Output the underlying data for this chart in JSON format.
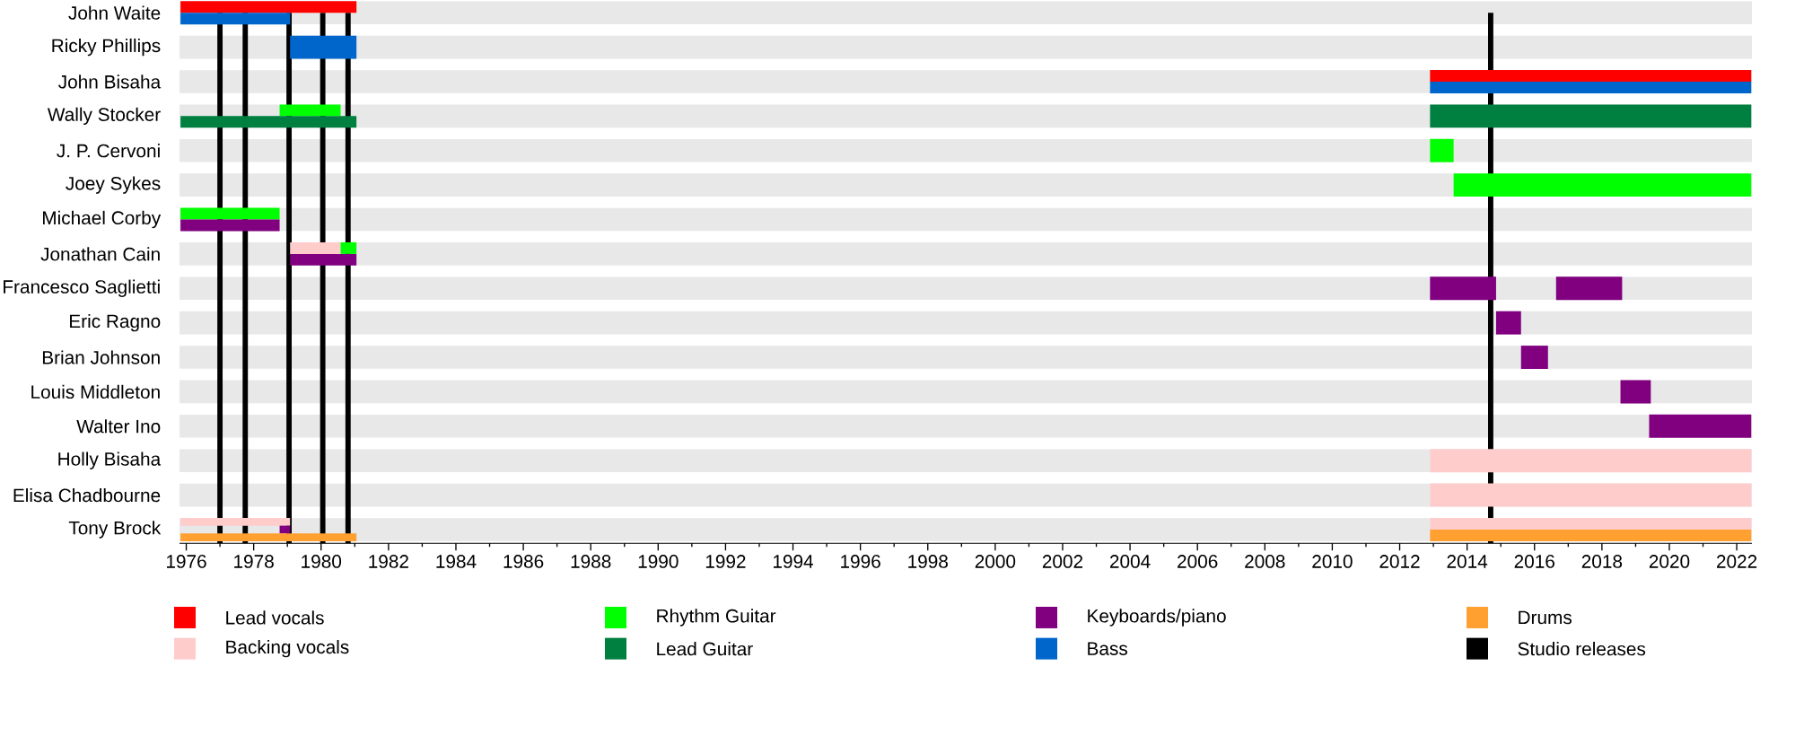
{
  "chart_data": {
    "type": "bar",
    "orientation": "horizontal",
    "categories": [
      "John Waite",
      "Ricky Phillips",
      "John Bisaha",
      "Wally Stocker",
      "J. P. Cervoni",
      "Joey Sykes",
      "Michael Corby",
      "Jonathan Cain",
      "Francesco Saglietti",
      "Eric Ragno",
      "Brian Johnson",
      "Louis Middleton",
      "Walter Ino",
      "Holly Bisaha",
      "Elisa Chadbourne",
      "Tony Brock"
    ],
    "series": [
      {
        "name": "Lead vocals",
        "color": "#ff0000",
        "base": [
          1975.83,
          null,
          2012.9,
          null,
          null,
          null,
          null,
          null,
          null,
          null,
          null,
          null,
          null,
          null,
          null,
          null
        ],
        "values": [
          5.22,
          null,
          9.53,
          null,
          null,
          null,
          null,
          null,
          null,
          null,
          null,
          null,
          null,
          null,
          null,
          null
        ]
      },
      {
        "name": "Backing vocals",
        "color": "#ffcccc",
        "base": [
          null,
          null,
          null,
          null,
          null,
          null,
          null,
          1979.08,
          null,
          null,
          null,
          null,
          null,
          2012.9,
          2012.9,
          1975.83
        ],
        "values": [
          null,
          null,
          null,
          null,
          null,
          null,
          null,
          1.5,
          null,
          null,
          null,
          null,
          null,
          9.53,
          9.53,
          3.25
        ]
      },
      {
        "name": "Rhythm Guitar",
        "color": "#00ff00",
        "base": [
          null,
          null,
          null,
          1978.77,
          2012.9,
          2013.6,
          1975.83,
          1980.58,
          null,
          null,
          null,
          null,
          null,
          null,
          null,
          null
        ],
        "values": [
          null,
          null,
          null,
          1.81,
          0.7,
          8.83,
          2.94,
          0.47,
          null,
          null,
          null,
          null,
          null,
          null,
          null,
          null
        ]
      },
      {
        "name": "Lead Guitar",
        "color": "#008040",
        "base": [
          null,
          null,
          null,
          1975.83,
          null,
          null,
          null,
          null,
          null,
          null,
          null,
          null,
          null,
          null,
          null,
          null
        ],
        "values": [
          null,
          null,
          null,
          5.22,
          null,
          null,
          null,
          null,
          null,
          null,
          null,
          null,
          null,
          null,
          null,
          null
        ]
      },
      {
        "name": "Keyboards/piano",
        "color": "#800080",
        "base": [
          null,
          null,
          null,
          null,
          null,
          null,
          1975.83,
          1979.08,
          2012.9,
          2014.86,
          2015.6,
          2018.55,
          2019.4,
          null,
          null,
          1978.77
        ],
        "values": [
          null,
          null,
          null,
          null,
          null,
          null,
          2.94,
          1.97,
          1.96,
          0.74,
          0.8,
          0.9,
          3.03,
          null,
          null,
          0.31
        ]
      },
      {
        "name": "Bass",
        "color": "#0066cc",
        "base": [
          1975.83,
          1979.08,
          2012.9,
          null,
          null,
          null,
          null,
          null,
          null,
          null,
          null,
          null,
          null,
          null,
          null,
          null
        ],
        "values": [
          3.25,
          1.97,
          9.53,
          null,
          null,
          null,
          null,
          null,
          null,
          null,
          null,
          null,
          null,
          null,
          null,
          null
        ]
      },
      {
        "name": "Drums",
        "color": "#ffa030",
        "base": [
          null,
          null,
          null,
          null,
          null,
          null,
          null,
          null,
          null,
          null,
          null,
          null,
          null,
          null,
          null,
          1975.83
        ],
        "values": [
          null,
          null,
          null,
          null,
          null,
          null,
          null,
          null,
          null,
          null,
          null,
          null,
          null,
          null,
          null,
          5.22
        ]
      },
      {
        "color": "#ffcccc",
        "base": [
          null,
          null,
          null,
          null,
          null,
          null,
          null,
          null,
          null,
          null,
          null,
          null,
          null,
          null,
          null,
          2012.9
        ],
        "values": [
          null,
          null,
          null,
          null,
          null,
          null,
          null,
          null,
          null,
          null,
          null,
          null,
          null,
          null,
          null,
          9.53
        ]
      },
      {
        "color": "#008040",
        "base": [
          null,
          null,
          null,
          2012.9,
          null,
          null,
          null,
          null,
          null,
          null,
          null,
          null,
          null,
          null,
          null,
          null
        ],
        "values": [
          null,
          null,
          null,
          9.53,
          null,
          null,
          null,
          null,
          null,
          null,
          null,
          null,
          null,
          null,
          null,
          null
        ]
      },
      {
        "color": "#800080",
        "base": [
          null,
          null,
          null,
          null,
          null,
          null,
          null,
          null,
          2016.64,
          null,
          null,
          null,
          null,
          null,
          null,
          null
        ],
        "values": [
          null,
          null,
          null,
          null,
          null,
          null,
          null,
          null,
          1.96,
          null,
          null,
          null,
          null,
          null,
          null,
          null
        ]
      },
      {
        "color": "#ffa030",
        "base": [
          null,
          null,
          null,
          null,
          null,
          null,
          null,
          null,
          null,
          null,
          null,
          null,
          null,
          null,
          null,
          2012.9
        ],
        "values": [
          null,
          null,
          null,
          null,
          null,
          null,
          null,
          null,
          null,
          null,
          null,
          null,
          null,
          null,
          null,
          9.53
        ]
      }
    ],
    "ref_lines": [
      {
        "axis": "x",
        "value": 1977.0,
        "label": "Studio releases",
        "color": "#000000"
      },
      {
        "axis": "x",
        "value": 1977.75,
        "color": "#000000"
      },
      {
        "axis": "x",
        "value": 1979.05,
        "color": "#000000"
      },
      {
        "axis": "x",
        "value": 1980.05,
        "color": "#000000"
      },
      {
        "axis": "x",
        "value": 1980.8,
        "color": "#000000"
      },
      {
        "axis": "x",
        "value": 2014.7,
        "color": "#000000"
      }
    ],
    "xlim": [
      1975.8,
      2022.45
    ],
    "xticks": [
      1976,
      1978,
      1980,
      1982,
      1984,
      1986,
      1988,
      1990,
      1992,
      1994,
      1996,
      1998,
      2000,
      2002,
      2004,
      2006,
      2008,
      2010,
      2012,
      2014,
      2016,
      2018,
      2020,
      2022
    ],
    "grid": "y",
    "legend": "bottom"
  }
}
